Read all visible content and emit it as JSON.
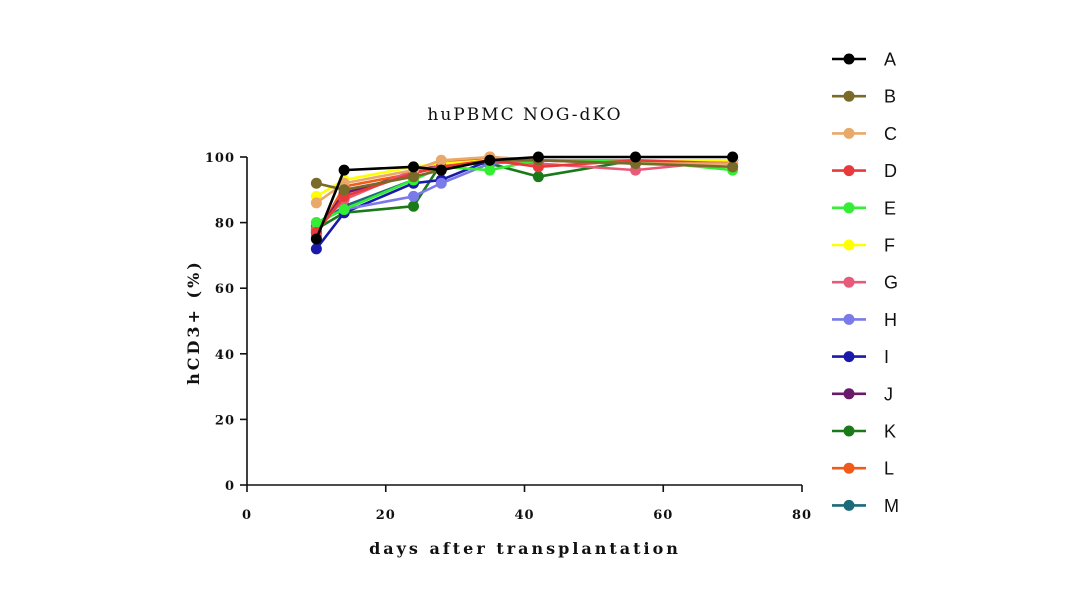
{
  "chart_data": {
    "type": "line",
    "title": "huPBMC NOG-dKO",
    "xlabel": "days after transplantation",
    "ylabel": "hCD3+ (%)",
    "xlim": [
      0,
      80
    ],
    "ylim": [
      0,
      100
    ],
    "xticks": [
      "0",
      "20",
      "40",
      "60",
      "80"
    ],
    "yticks": [
      "0",
      "20",
      "40",
      "60",
      "80",
      "100"
    ],
    "grid": false,
    "legend_position": "right",
    "x": [
      10,
      14,
      24,
      28,
      35,
      42,
      56,
      70
    ],
    "series": [
      {
        "name": "A",
        "color": "#000000",
        "values": [
          75,
          96,
          97,
          96,
          99,
          100,
          100,
          100
        ]
      },
      {
        "name": "B",
        "color": "#7a6a2a",
        "values": [
          92,
          90,
          94,
          96,
          99,
          99,
          98,
          97
        ]
      },
      {
        "name": "C",
        "color": "#e8a96a",
        "values": [
          86,
          92,
          96,
          99,
          100,
          99,
          98,
          98
        ]
      },
      {
        "name": "D",
        "color": "#e83a3a",
        "values": [
          77,
          88,
          95,
          97,
          99,
          97,
          99,
          98
        ]
      },
      {
        "name": "E",
        "color": "#33ee33",
        "values": [
          80,
          84,
          93,
          97,
          96,
          99,
          99,
          96
        ]
      },
      {
        "name": "F",
        "color": "#ffff00",
        "values": [
          88,
          93,
          97,
          98,
          99,
          99,
          99,
          99
        ]
      },
      {
        "name": "G",
        "color": "#e85a7a",
        "values": [
          78,
          87,
          96,
          97,
          99,
          98,
          96,
          99
        ]
      },
      {
        "name": "H",
        "color": "#7a7ae8",
        "values": [
          80,
          84,
          88,
          92,
          98,
          99,
          98,
          99
        ]
      },
      {
        "name": "I",
        "color": "#1a1aaa",
        "values": [
          72,
          83,
          92,
          93,
          99,
          99,
          99,
          99
        ]
      },
      {
        "name": "J",
        "color": "#6a1a6a",
        "values": [
          77,
          89,
          95,
          98,
          99,
          99,
          99,
          99
        ]
      },
      {
        "name": "K",
        "color": "#1a7a1a",
        "values": [
          78,
          83,
          85,
          98,
          98,
          94,
          99,
          99
        ]
      },
      {
        "name": "L",
        "color": "#f05a1a",
        "values": [
          76,
          91,
          95,
          98,
          100,
          99,
          99,
          99
        ]
      },
      {
        "name": "M",
        "color": "#1a6a7a",
        "values": [
          79,
          85,
          93,
          97,
          99,
          99,
          99,
          99
        ]
      }
    ]
  }
}
